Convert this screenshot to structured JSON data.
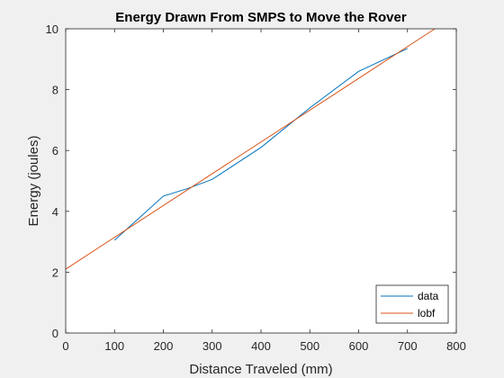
{
  "chart_data": {
    "type": "line",
    "title": "Energy Drawn From SMPS to Move the Rover",
    "xlabel": "Distance Traveled (mm)",
    "ylabel": "Energy (joules)",
    "xlim": [
      0,
      800
    ],
    "ylim": [
      0,
      10
    ],
    "xticks": [
      0,
      100,
      200,
      300,
      400,
      500,
      600,
      700,
      800
    ],
    "yticks": [
      0,
      2,
      4,
      6,
      8,
      10
    ],
    "grid": false,
    "legend_position": "bottom-right",
    "series": [
      {
        "name": "data",
        "color": "#0072bd",
        "x": [
          100,
          200,
          250,
          300,
          400,
          500,
          600,
          700
        ],
        "y": [
          3.05,
          4.5,
          4.75,
          5.05,
          6.1,
          7.4,
          8.6,
          9.35
        ]
      },
      {
        "name": "lobf",
        "color": "#d95319",
        "x": [
          0,
          756
        ],
        "y": [
          2.1,
          10.0
        ]
      }
    ]
  }
}
